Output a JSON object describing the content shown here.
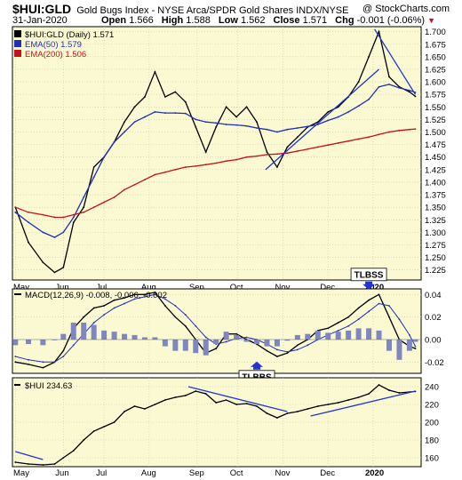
{
  "header": {
    "symbol": "$HUI:GLD",
    "description": "Gold Bugs Index - NYSE Arca/SPDR Gold Shares INDX/NYSE",
    "watermark": "@ StockCharts.com",
    "date": "31-Jan-2020",
    "stats": {
      "open_label": "Open",
      "open": "1.566",
      "high_label": "High",
      "high": "1.588",
      "low_label": "Low",
      "low": "1.562",
      "close_label": "Close",
      "close": "1.571",
      "chg_label": "Chg",
      "chg": "-0.001 (-0.06%)"
    }
  },
  "colors": {
    "panel_bg": "#fbf9d2",
    "price": "#000000",
    "ema50": "#1f2fb8",
    "ema200": "#c8101a",
    "trend": "#1f34d6",
    "histogram": "#7f86c4"
  },
  "chart_data": [
    {
      "type": "line",
      "title": "$HUI:GLD (Daily) 1.571",
      "y_ticks": [
        "1.700",
        "1.675",
        "1.650",
        "1.625",
        "1.600",
        "1.575",
        "1.550",
        "1.525",
        "1.500",
        "1.475",
        "1.450",
        "1.425",
        "1.400",
        "1.375",
        "1.350",
        "1.325",
        "1.300",
        "1.275",
        "1.250",
        "1.225"
      ],
      "ylim": [
        1.205,
        1.71
      ],
      "x_ticks": [
        "May",
        "Jun",
        "Jul",
        "Aug",
        "Sep",
        "Oct",
        "Nov",
        "Dec",
        "2020"
      ],
      "x": [
        "2019-05-01",
        "2019-05-10",
        "2019-05-20",
        "2019-05-28",
        "2019-06-03",
        "2019-06-10",
        "2019-06-17",
        "2019-06-24",
        "2019-07-01",
        "2019-07-08",
        "2019-07-15",
        "2019-07-22",
        "2019-07-29",
        "2019-08-05",
        "2019-08-12",
        "2019-08-19",
        "2019-08-26",
        "2019-09-02",
        "2019-09-09",
        "2019-09-16",
        "2019-09-23",
        "2019-09-30",
        "2019-10-07",
        "2019-10-14",
        "2019-10-21",
        "2019-10-28",
        "2019-11-04",
        "2019-11-11",
        "2019-11-18",
        "2019-11-25",
        "2019-12-02",
        "2019-12-09",
        "2019-12-16",
        "2019-12-23",
        "2019-12-30",
        "2020-01-06",
        "2020-01-13",
        "2020-01-20",
        "2020-01-27",
        "2020-01-31"
      ],
      "series": [
        {
          "name": "$HUI:GLD (Daily) 1.571",
          "values": [
            1.35,
            1.28,
            1.24,
            1.22,
            1.23,
            1.32,
            1.35,
            1.43,
            1.45,
            1.48,
            1.52,
            1.55,
            1.57,
            1.62,
            1.57,
            1.58,
            1.56,
            1.51,
            1.46,
            1.51,
            1.55,
            1.53,
            1.55,
            1.52,
            1.46,
            1.43,
            1.47,
            1.49,
            1.51,
            1.52,
            1.54,
            1.55,
            1.57,
            1.6,
            1.65,
            1.7,
            1.61,
            1.59,
            1.58,
            1.571
          ]
        },
        {
          "name": "EMA(50) 1.579",
          "values": [
            1.34,
            1.32,
            1.3,
            1.29,
            1.3,
            1.33,
            1.37,
            1.41,
            1.45,
            1.48,
            1.5,
            1.52,
            1.53,
            1.54,
            1.538,
            1.538,
            1.537,
            1.525,
            1.52,
            1.518,
            1.515,
            1.514,
            1.512,
            1.508,
            1.505,
            1.5,
            1.505,
            1.508,
            1.511,
            1.515,
            1.523,
            1.53,
            1.54,
            1.552,
            1.565,
            1.59,
            1.595,
            1.588,
            1.583,
            1.579
          ]
        },
        {
          "name": "EMA(200) 1.506",
          "values": [
            1.35,
            1.34,
            1.335,
            1.33,
            1.33,
            1.335,
            1.34,
            1.35,
            1.36,
            1.37,
            1.385,
            1.395,
            1.405,
            1.415,
            1.42,
            1.425,
            1.43,
            1.432,
            1.435,
            1.438,
            1.442,
            1.445,
            1.45,
            1.452,
            1.455,
            1.456,
            1.458,
            1.462,
            1.466,
            1.47,
            1.474,
            1.478,
            1.482,
            1.486,
            1.49,
            1.495,
            1.5,
            1.503,
            1.505,
            1.506
          ]
        }
      ],
      "trendlines": [
        {
          "from": [
            "2019-10-20",
            1.425
          ],
          "to": [
            "2020-01-06",
            1.625
          ]
        },
        {
          "from": [
            "2020-01-03",
            1.705
          ],
          "to": [
            "2020-01-31",
            1.575
          ]
        }
      ]
    },
    {
      "type": "line",
      "title": "MACD(12,26,9) -0.008, -0.006, -0.002",
      "y_ticks": [
        "0.04",
        "0.02",
        "0.00",
        "-0.02"
      ],
      "ylim": [
        -0.03,
        0.045
      ],
      "series": [
        {
          "name": "MACD",
          "values": [
            -0.02,
            -0.022,
            -0.025,
            -0.02,
            -0.01,
            0.01,
            0.02,
            0.028,
            0.03,
            0.035,
            0.037,
            0.04,
            0.04,
            0.042,
            0.03,
            0.02,
            0.012,
            0.0,
            -0.012,
            -0.008,
            0.005,
            0.005,
            0.0,
            -0.004,
            -0.01,
            -0.015,
            -0.012,
            -0.005,
            0.0,
            0.008,
            0.01,
            0.015,
            0.02,
            0.028,
            0.035,
            0.04,
            0.02,
            0.0,
            -0.006,
            -0.008
          ]
        },
        {
          "name": "Signal",
          "values": [
            -0.015,
            -0.018,
            -0.02,
            -0.02,
            -0.015,
            -0.005,
            0.005,
            0.015,
            0.022,
            0.028,
            0.032,
            0.036,
            0.038,
            0.04,
            0.036,
            0.03,
            0.022,
            0.012,
            0.002,
            -0.004,
            -0.002,
            0.001,
            0.002,
            0.0,
            -0.004,
            -0.009,
            -0.011,
            -0.009,
            -0.005,
            0.0,
            0.004,
            0.008,
            0.012,
            0.018,
            0.025,
            0.032,
            0.03,
            0.018,
            0.004,
            -0.006
          ]
        },
        {
          "name": "Histogram",
          "values": [
            -0.005,
            -0.004,
            -0.005,
            0.0,
            0.005,
            0.015,
            0.015,
            0.013,
            0.008,
            0.007,
            0.005,
            0.004,
            0.002,
            0.002,
            -0.006,
            -0.01,
            -0.01,
            -0.012,
            -0.014,
            -0.004,
            0.007,
            0.004,
            -0.002,
            -0.004,
            -0.006,
            -0.006,
            -0.001,
            0.004,
            0.005,
            0.008,
            0.006,
            0.007,
            0.008,
            0.01,
            0.01,
            0.008,
            -0.01,
            -0.018,
            -0.01,
            -0.002
          ]
        }
      ],
      "callouts": [
        {
          "text": "TLBBS",
          "x": "2019-10-14",
          "value": -0.018
        },
        {
          "text": "TLBSS",
          "x": "2019-12-30",
          "value": 0.042
        }
      ]
    },
    {
      "type": "line",
      "title": "$HUI 234.63",
      "y_ticks": [
        "240",
        "220",
        "200",
        "180",
        "160"
      ],
      "ylim": [
        150,
        250
      ],
      "series": [
        {
          "name": "$HUI 234.63",
          "values": [
            155,
            153,
            152,
            153,
            160,
            168,
            180,
            190,
            195,
            200,
            212,
            218,
            215,
            220,
            225,
            228,
            230,
            235,
            232,
            222,
            225,
            220,
            221,
            218,
            210,
            205,
            210,
            212,
            215,
            218,
            220,
            222,
            225,
            228,
            232,
            242,
            236,
            233,
            234,
            234.63
          ]
        }
      ],
      "trendlines": [
        {
          "from": [
            "2019-05-01",
            167
          ],
          "to": [
            "2019-05-20",
            158
          ]
        },
        {
          "from": [
            "2019-08-28",
            240
          ],
          "to": [
            "2019-11-04",
            212
          ]
        },
        {
          "from": [
            "2019-11-20",
            207
          ],
          "to": [
            "2020-01-31",
            235
          ]
        }
      ]
    }
  ]
}
